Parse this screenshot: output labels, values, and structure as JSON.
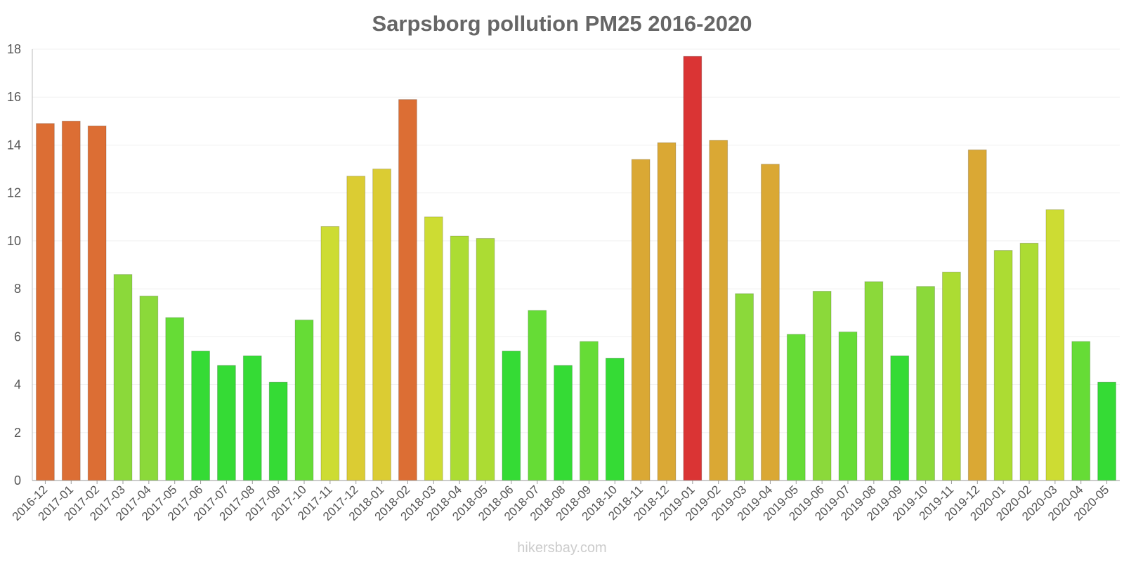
{
  "chart_data": {
    "type": "bar",
    "title": "Sarpsborg pollution PM25 2016-2020",
    "xlabel": "",
    "ylabel": "",
    "ylim": [
      0,
      18
    ],
    "yticks": [
      0,
      2,
      4,
      6,
      8,
      10,
      12,
      14,
      16,
      18
    ],
    "grid": true,
    "categories": [
      "2016-12",
      "2017-01",
      "2017-02",
      "2017-03",
      "2017-04",
      "2017-05",
      "2017-06",
      "2017-07",
      "2017-08",
      "2017-09",
      "2017-10",
      "2017-11",
      "2017-12",
      "2018-01",
      "2018-02",
      "2018-03",
      "2018-04",
      "2018-05",
      "2018-06",
      "2018-07",
      "2018-08",
      "2018-09",
      "2018-10",
      "2018-11",
      "2018-12",
      "2019-01",
      "2019-02",
      "2019-03",
      "2019-04",
      "2019-05",
      "2019-06",
      "2019-07",
      "2019-08",
      "2019-09",
      "2019-10",
      "2019-11",
      "2019-12",
      "2020-01",
      "2020-02",
      "2020-03",
      "2020-04",
      "2020-05"
    ],
    "values": [
      14.9,
      15.0,
      14.8,
      8.6,
      7.7,
      6.8,
      5.4,
      4.8,
      5.2,
      4.1,
      6.7,
      10.6,
      12.7,
      13.0,
      15.9,
      11.0,
      10.2,
      10.1,
      5.4,
      7.1,
      4.8,
      5.8,
      5.1,
      13.4,
      14.1,
      17.7,
      14.2,
      7.8,
      13.2,
      6.1,
      7.9,
      6.2,
      8.3,
      5.2,
      8.1,
      8.7,
      13.8,
      9.6,
      9.9,
      11.3,
      5.8,
      4.1
    ],
    "colors": [
      "#dc6e34",
      "#dc6e34",
      "#dc6e34",
      "#8bd93a",
      "#8bd93a",
      "#66dc36",
      "#35db35",
      "#35db35",
      "#35db35",
      "#35db35",
      "#66dc36",
      "#cddc33",
      "#dbcc33",
      "#dbcc33",
      "#dc6e34",
      "#cddc33",
      "#acdc33",
      "#acdc33",
      "#35db35",
      "#66dc36",
      "#35db35",
      "#66dc36",
      "#35db35",
      "#daa834",
      "#daa834",
      "#da3434",
      "#daa834",
      "#8bd93a",
      "#daa834",
      "#66dc36",
      "#8bd93a",
      "#66dc36",
      "#8bd93a",
      "#35db35",
      "#8bd93a",
      "#acdc33",
      "#daa834",
      "#acdc33",
      "#acdc33",
      "#cddc33",
      "#66dc36",
      "#35db35"
    ]
  },
  "watermark": "hikersbay.com"
}
